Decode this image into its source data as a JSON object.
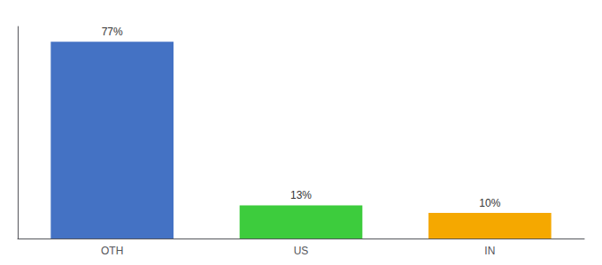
{
  "chart_data": {
    "type": "bar",
    "categories": [
      "OTH",
      "US",
      "IN"
    ],
    "values": [
      77,
      13,
      10
    ],
    "value_labels": [
      "77%",
      "13%",
      "10%"
    ],
    "colors": [
      "#4472c4",
      "#3dcc3d",
      "#f5a800"
    ],
    "ylim": [
      0,
      83
    ],
    "grid": false,
    "data_labels": true,
    "tick_labels": "x"
  }
}
